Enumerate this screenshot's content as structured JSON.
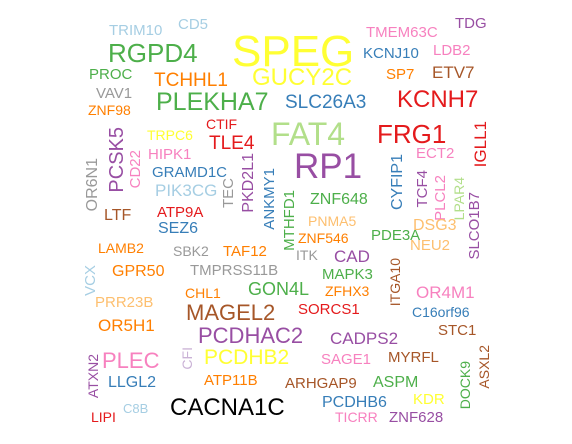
{
  "words": [
    {
      "text": "SPEG",
      "color": "#ffff33"
    },
    {
      "text": "GUCY2C",
      "color": "#ffff33"
    },
    {
      "text": "RGPD4",
      "color": "#4daf4a"
    },
    {
      "text": "TRIM10",
      "color": "#a6cee3"
    },
    {
      "text": "CD5",
      "color": "#a6cee3"
    },
    {
      "text": "TMEM63C",
      "color": "#f781bf"
    },
    {
      "text": "TDG",
      "color": "#984ea3"
    },
    {
      "text": "KCNJ10",
      "color": "#377eb8"
    },
    {
      "text": "LDB2",
      "color": "#f781bf"
    },
    {
      "text": "PROC",
      "color": "#4daf4a"
    },
    {
      "text": "TCHHL1",
      "color": "#ff7f00"
    },
    {
      "text": "SP7",
      "color": "#ff7f00"
    },
    {
      "text": "ETV7",
      "color": "#a65628"
    },
    {
      "text": "VAV1",
      "color": "#999999"
    },
    {
      "text": "ZNF98",
      "color": "#ff7f00"
    },
    {
      "text": "PLEKHA7",
      "color": "#4daf4a"
    },
    {
      "text": "SLC26A3",
      "color": "#377eb8"
    },
    {
      "text": "KCNH7",
      "color": "#e41a1c"
    },
    {
      "text": "FAT4",
      "color": "#b2df8a"
    },
    {
      "text": "FRG1",
      "color": "#e41a1c"
    },
    {
      "text": "IGLL1",
      "color": "#e41a1c"
    },
    {
      "text": "CTIF",
      "color": "#e41a1c"
    },
    {
      "text": "TRPC6",
      "color": "#ffff33"
    },
    {
      "text": "TLE4",
      "color": "#e41a1c"
    },
    {
      "text": "PCSK5",
      "color": "#984ea3"
    },
    {
      "text": "HIPK1",
      "color": "#f781bf"
    },
    {
      "text": "RP1",
      "color": "#984ea3"
    },
    {
      "text": "ECT2",
      "color": "#f781bf"
    },
    {
      "text": "OR6N1",
      "color": "#999999"
    },
    {
      "text": "CD22",
      "color": "#f781bf"
    },
    {
      "text": "GRAMD1C",
      "color": "#377eb8"
    },
    {
      "text": "PIK3CG",
      "color": "#a6cee3"
    },
    {
      "text": "TEC",
      "color": "#999999"
    },
    {
      "text": "PKD2L1",
      "color": "#984ea3"
    },
    {
      "text": "ANKMY1",
      "color": "#377eb8"
    },
    {
      "text": "MTHFD1",
      "color": "#4daf4a"
    },
    {
      "text": "ZNF648",
      "color": "#4daf4a"
    },
    {
      "text": "CYFIP1",
      "color": "#377eb8"
    },
    {
      "text": "TCF4",
      "color": "#984ea3"
    },
    {
      "text": "PLCL2",
      "color": "#f781bf"
    },
    {
      "text": "LPAR4",
      "color": "#b2df8a"
    },
    {
      "text": "SLCO1B7",
      "color": "#984ea3"
    },
    {
      "text": "LTF",
      "color": "#a65628"
    },
    {
      "text": "ATP9A",
      "color": "#e41a1c"
    },
    {
      "text": "SEZ6",
      "color": "#377eb8"
    },
    {
      "text": "PNMA5",
      "color": "#fdbf6f"
    },
    {
      "text": "ZNF546",
      "color": "#ff7f00"
    },
    {
      "text": "PDE3A",
      "color": "#4daf4a"
    },
    {
      "text": "DSG3",
      "color": "#fdbf6f"
    },
    {
      "text": "LAMB2",
      "color": "#ff7f00"
    },
    {
      "text": "SBK2",
      "color": "#999999"
    },
    {
      "text": "TAF12",
      "color": "#ff7f00"
    },
    {
      "text": "ITK",
      "color": "#999999"
    },
    {
      "text": "CAD",
      "color": "#984ea3"
    },
    {
      "text": "NEU2",
      "color": "#fdbf6f"
    },
    {
      "text": "VCX",
      "color": "#a6cee3"
    },
    {
      "text": "GPR50",
      "color": "#ff7f00"
    },
    {
      "text": "TMPRSS11B",
      "color": "#999999"
    },
    {
      "text": "MAPK3",
      "color": "#4daf4a"
    },
    {
      "text": "ITGA10",
      "color": "#a65628"
    },
    {
      "text": "OR4M1",
      "color": "#f781bf"
    },
    {
      "text": "PRR23B",
      "color": "#fdbf6f"
    },
    {
      "text": "CHL1",
      "color": "#ff7f00"
    },
    {
      "text": "GON4L",
      "color": "#4daf4a"
    },
    {
      "text": "ZFHX3",
      "color": "#ff7f00"
    },
    {
      "text": "C16orf96",
      "color": "#377eb8"
    },
    {
      "text": "MAGEL2",
      "color": "#a65628"
    },
    {
      "text": "SORCS1",
      "color": "#e41a1c"
    },
    {
      "text": "OR5H1",
      "color": "#ff7f00"
    },
    {
      "text": "STC1",
      "color": "#a65628"
    },
    {
      "text": "PCDHAC2",
      "color": "#984ea3"
    },
    {
      "text": "CADPS2",
      "color": "#984ea3"
    },
    {
      "text": "PLEC",
      "color": "#f781bf"
    },
    {
      "text": "CFI",
      "color": "#cab2d6"
    },
    {
      "text": "PCDHB2",
      "color": "#ffff33"
    },
    {
      "text": "SAGE1",
      "color": "#f781bf"
    },
    {
      "text": "MYRFL",
      "color": "#a65628"
    },
    {
      "text": "ATXN2",
      "color": "#984ea3"
    },
    {
      "text": "LLGL2",
      "color": "#377eb8"
    },
    {
      "text": "ATP11B",
      "color": "#ff7f00"
    },
    {
      "text": "ARHGAP9",
      "color": "#a65628"
    },
    {
      "text": "ASPM",
      "color": "#4daf4a"
    },
    {
      "text": "DOCK9",
      "color": "#4daf4a"
    },
    {
      "text": "ASXL2",
      "color": "#a65628"
    },
    {
      "text": "C8B",
      "color": "#a6cee3"
    },
    {
      "text": "CACNA1C",
      "color": "#000000"
    },
    {
      "text": "PCDHB6",
      "color": "#377eb8"
    },
    {
      "text": "KDR",
      "color": "#ffff33"
    },
    {
      "text": "LIPI",
      "color": "#e41a1c"
    },
    {
      "text": "TICRR",
      "color": "#f781bf"
    },
    {
      "text": "ZNF628",
      "color": "#984ea3"
    }
  ]
}
